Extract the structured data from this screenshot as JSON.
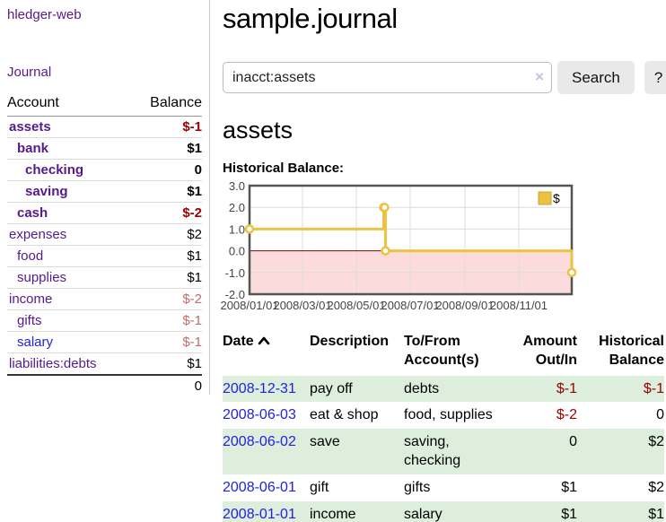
{
  "app": {
    "title": "hledger-web",
    "nav_journal": "Journal"
  },
  "colors": {
    "link_purple": "#551a8b",
    "link_blue": "#2222dd",
    "negative_strong": "#a00000",
    "negative_soft": "#c46a6a",
    "table_stripe_green": "#ddeedd",
    "series_gold": "#edc240",
    "negative_region_pink": "#fbdbdb",
    "zero_line_red": "#8b0000"
  },
  "sidebar": {
    "header": {
      "account": "Account",
      "balance": "Balance"
    },
    "accounts": [
      {
        "name": "assets",
        "depth": 1,
        "bold": true,
        "balance": "$-1",
        "bal_class": "neg"
      },
      {
        "name": "bank",
        "depth": 2,
        "bold": true,
        "balance": "$1",
        "bal_class": ""
      },
      {
        "name": "checking",
        "depth": 3,
        "bold": true,
        "balance": "0",
        "bal_class": ""
      },
      {
        "name": "saving",
        "depth": 3,
        "bold": true,
        "balance": "$1",
        "bal_class": ""
      },
      {
        "name": "cash",
        "depth": 2,
        "bold": true,
        "balance": "$-2",
        "bal_class": "neg"
      },
      {
        "name": "expenses",
        "depth": 1,
        "bold": false,
        "balance": "$2",
        "bal_class": ""
      },
      {
        "name": "food",
        "depth": 2,
        "bold": false,
        "balance": "$1",
        "bal_class": ""
      },
      {
        "name": "supplies",
        "depth": 2,
        "bold": false,
        "balance": "$1",
        "bal_class": ""
      },
      {
        "name": "income",
        "depth": 1,
        "bold": false,
        "balance": "$-2",
        "bal_class": "neg-soft"
      },
      {
        "name": "gifts",
        "depth": 2,
        "bold": false,
        "balance": "$-1",
        "bal_class": "neg-soft"
      },
      {
        "name": "salary",
        "depth": 2,
        "bold": false,
        "balance": "$-1",
        "bal_class": "neg-soft",
        "link_color": "blue"
      },
      {
        "name": "liabilities:debts",
        "depth": 1,
        "bold": false,
        "balance": "$1",
        "bal_class": ""
      }
    ],
    "total": "0"
  },
  "main": {
    "title": "sample.journal",
    "search": {
      "value": "inacct:assets",
      "clear_icon": "×",
      "button_label": "Search",
      "help_label": "?"
    },
    "account_heading": "assets",
    "chart_label": "Historical Balance:"
  },
  "chart_data": {
    "type": "line",
    "title": "Historical Balance:",
    "step": true,
    "series": [
      {
        "name": "$",
        "color": "#edc240",
        "points": [
          [
            "2008-01-01",
            1
          ],
          [
            "2008-06-01",
            2
          ],
          [
            "2008-06-02",
            2
          ],
          [
            "2008-06-03",
            0
          ],
          [
            "2008-12-31",
            -1
          ]
        ]
      }
    ],
    "xrange": [
      "2008-01-01",
      "2008-12-31"
    ],
    "ylim": [
      -2,
      3
    ],
    "y_ticks": [
      3.0,
      2.0,
      1.0,
      0.0,
      -1.0,
      -2.0
    ],
    "x_ticks": [
      "2008/01/01",
      "2008/03/01",
      "2008/05/01",
      "2008/07/01",
      "2008/09/01",
      "2008/11/01"
    ],
    "grid": true,
    "legend_position": "top-right",
    "legend_label": "$",
    "negative_region_below": 0
  },
  "register": {
    "headers": [
      {
        "label": "Date",
        "align": "left",
        "sorted": "asc"
      },
      {
        "label": "Description",
        "align": "left"
      },
      {
        "label": "To/From Account(s)",
        "align": "left"
      },
      {
        "label": "Amount Out/In",
        "align": "right"
      },
      {
        "label": "Historical Balance",
        "align": "right"
      }
    ],
    "rows": [
      {
        "date": "2008-12-31",
        "description": "pay off",
        "accounts": "debts",
        "amount": "$-1",
        "balance": "$-1"
      },
      {
        "date": "2008-06-03",
        "description": "eat & shop",
        "accounts": "food, supplies",
        "amount": "$-2",
        "balance": "0"
      },
      {
        "date": "2008-06-02",
        "description": "save",
        "accounts": "saving, checking",
        "amount": "0",
        "balance": "$2"
      },
      {
        "date": "2008-06-01",
        "description": "gift",
        "accounts": "gifts",
        "amount": "$1",
        "balance": "$2"
      },
      {
        "date": "2008-01-01",
        "description": "income",
        "accounts": "salary",
        "amount": "$1",
        "balance": "$1"
      }
    ]
  }
}
